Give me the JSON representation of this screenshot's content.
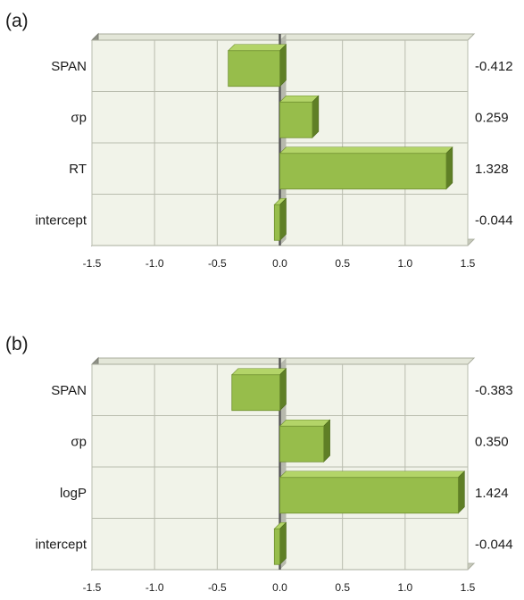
{
  "chart_data": [
    {
      "panel": "(a)",
      "type": "bar",
      "orientation": "horizontal",
      "categories": [
        "SPAN",
        "σp",
        "RT",
        "intercept"
      ],
      "values": [
        -0.412,
        0.259,
        1.328,
        -0.044
      ],
      "value_labels": [
        "-0.412",
        "0.259",
        "1.328",
        "-0.044"
      ],
      "xlim": [
        -1.5,
        1.5
      ],
      "xticks": [
        "-1.5",
        "-1.0",
        "-0.5",
        "0.0",
        "0.5",
        "1.0",
        "1.5"
      ],
      "grid": true
    },
    {
      "panel": "(b)",
      "type": "bar",
      "orientation": "horizontal",
      "categories": [
        "SPAN",
        "σp",
        "logP",
        "intercept"
      ],
      "values": [
        -0.383,
        0.35,
        1.424,
        -0.044
      ],
      "value_labels": [
        "-0.383",
        "0.350",
        "1.424",
        "-0.044"
      ],
      "xlim": [
        -1.5,
        1.5
      ],
      "xticks": [
        "-1.5",
        "-1.0",
        "-0.5",
        "0.0",
        "0.5",
        "1.0",
        "1.5"
      ],
      "grid": true
    }
  ],
  "colors": {
    "bar_front": "#97bd4b",
    "bar_top": "#b3d468",
    "bar_side": "#5f7f26",
    "plot_background": "#f1f3e9",
    "grid_line": "#b9bcae"
  }
}
